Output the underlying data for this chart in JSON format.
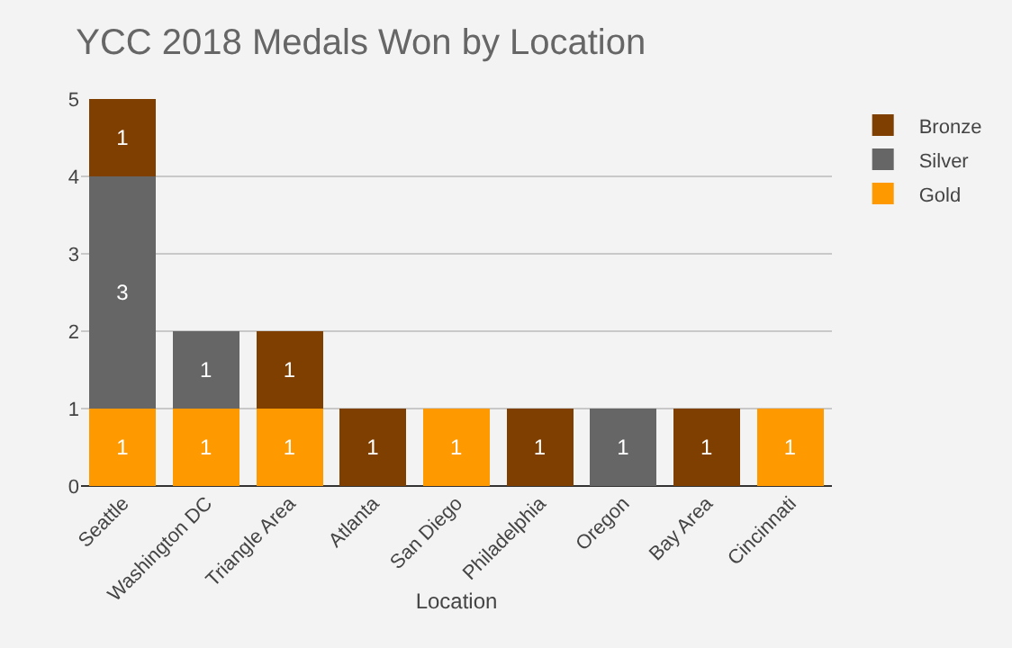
{
  "chart_data": {
    "type": "bar",
    "title": "YCC 2018 Medals Won by Location",
    "xlabel": "Location",
    "categories": [
      "Seattle",
      "Washington DC",
      "Triangle Area",
      "Atlanta",
      "San Diego",
      "Philadelphia",
      "Oregon",
      "Bay Area",
      "Cincinnati"
    ],
    "stacked": true,
    "data_labels": true,
    "grid": "y",
    "legend": "top right",
    "ylim": [
      0,
      5
    ],
    "yticks": [
      0,
      1,
      2,
      3,
      4,
      5
    ],
    "series": [
      {
        "name": "Gold",
        "color": "#ff9900",
        "values": [
          1,
          1,
          1,
          null,
          1,
          null,
          null,
          null,
          1
        ]
      },
      {
        "name": "Silver",
        "color": "#666666",
        "values": [
          3,
          1,
          null,
          null,
          null,
          null,
          1,
          null,
          null
        ]
      },
      {
        "name": "Bronze",
        "color": "#7f3f00",
        "values": [
          1,
          null,
          1,
          1,
          null,
          1,
          null,
          1,
          null
        ]
      }
    ]
  }
}
